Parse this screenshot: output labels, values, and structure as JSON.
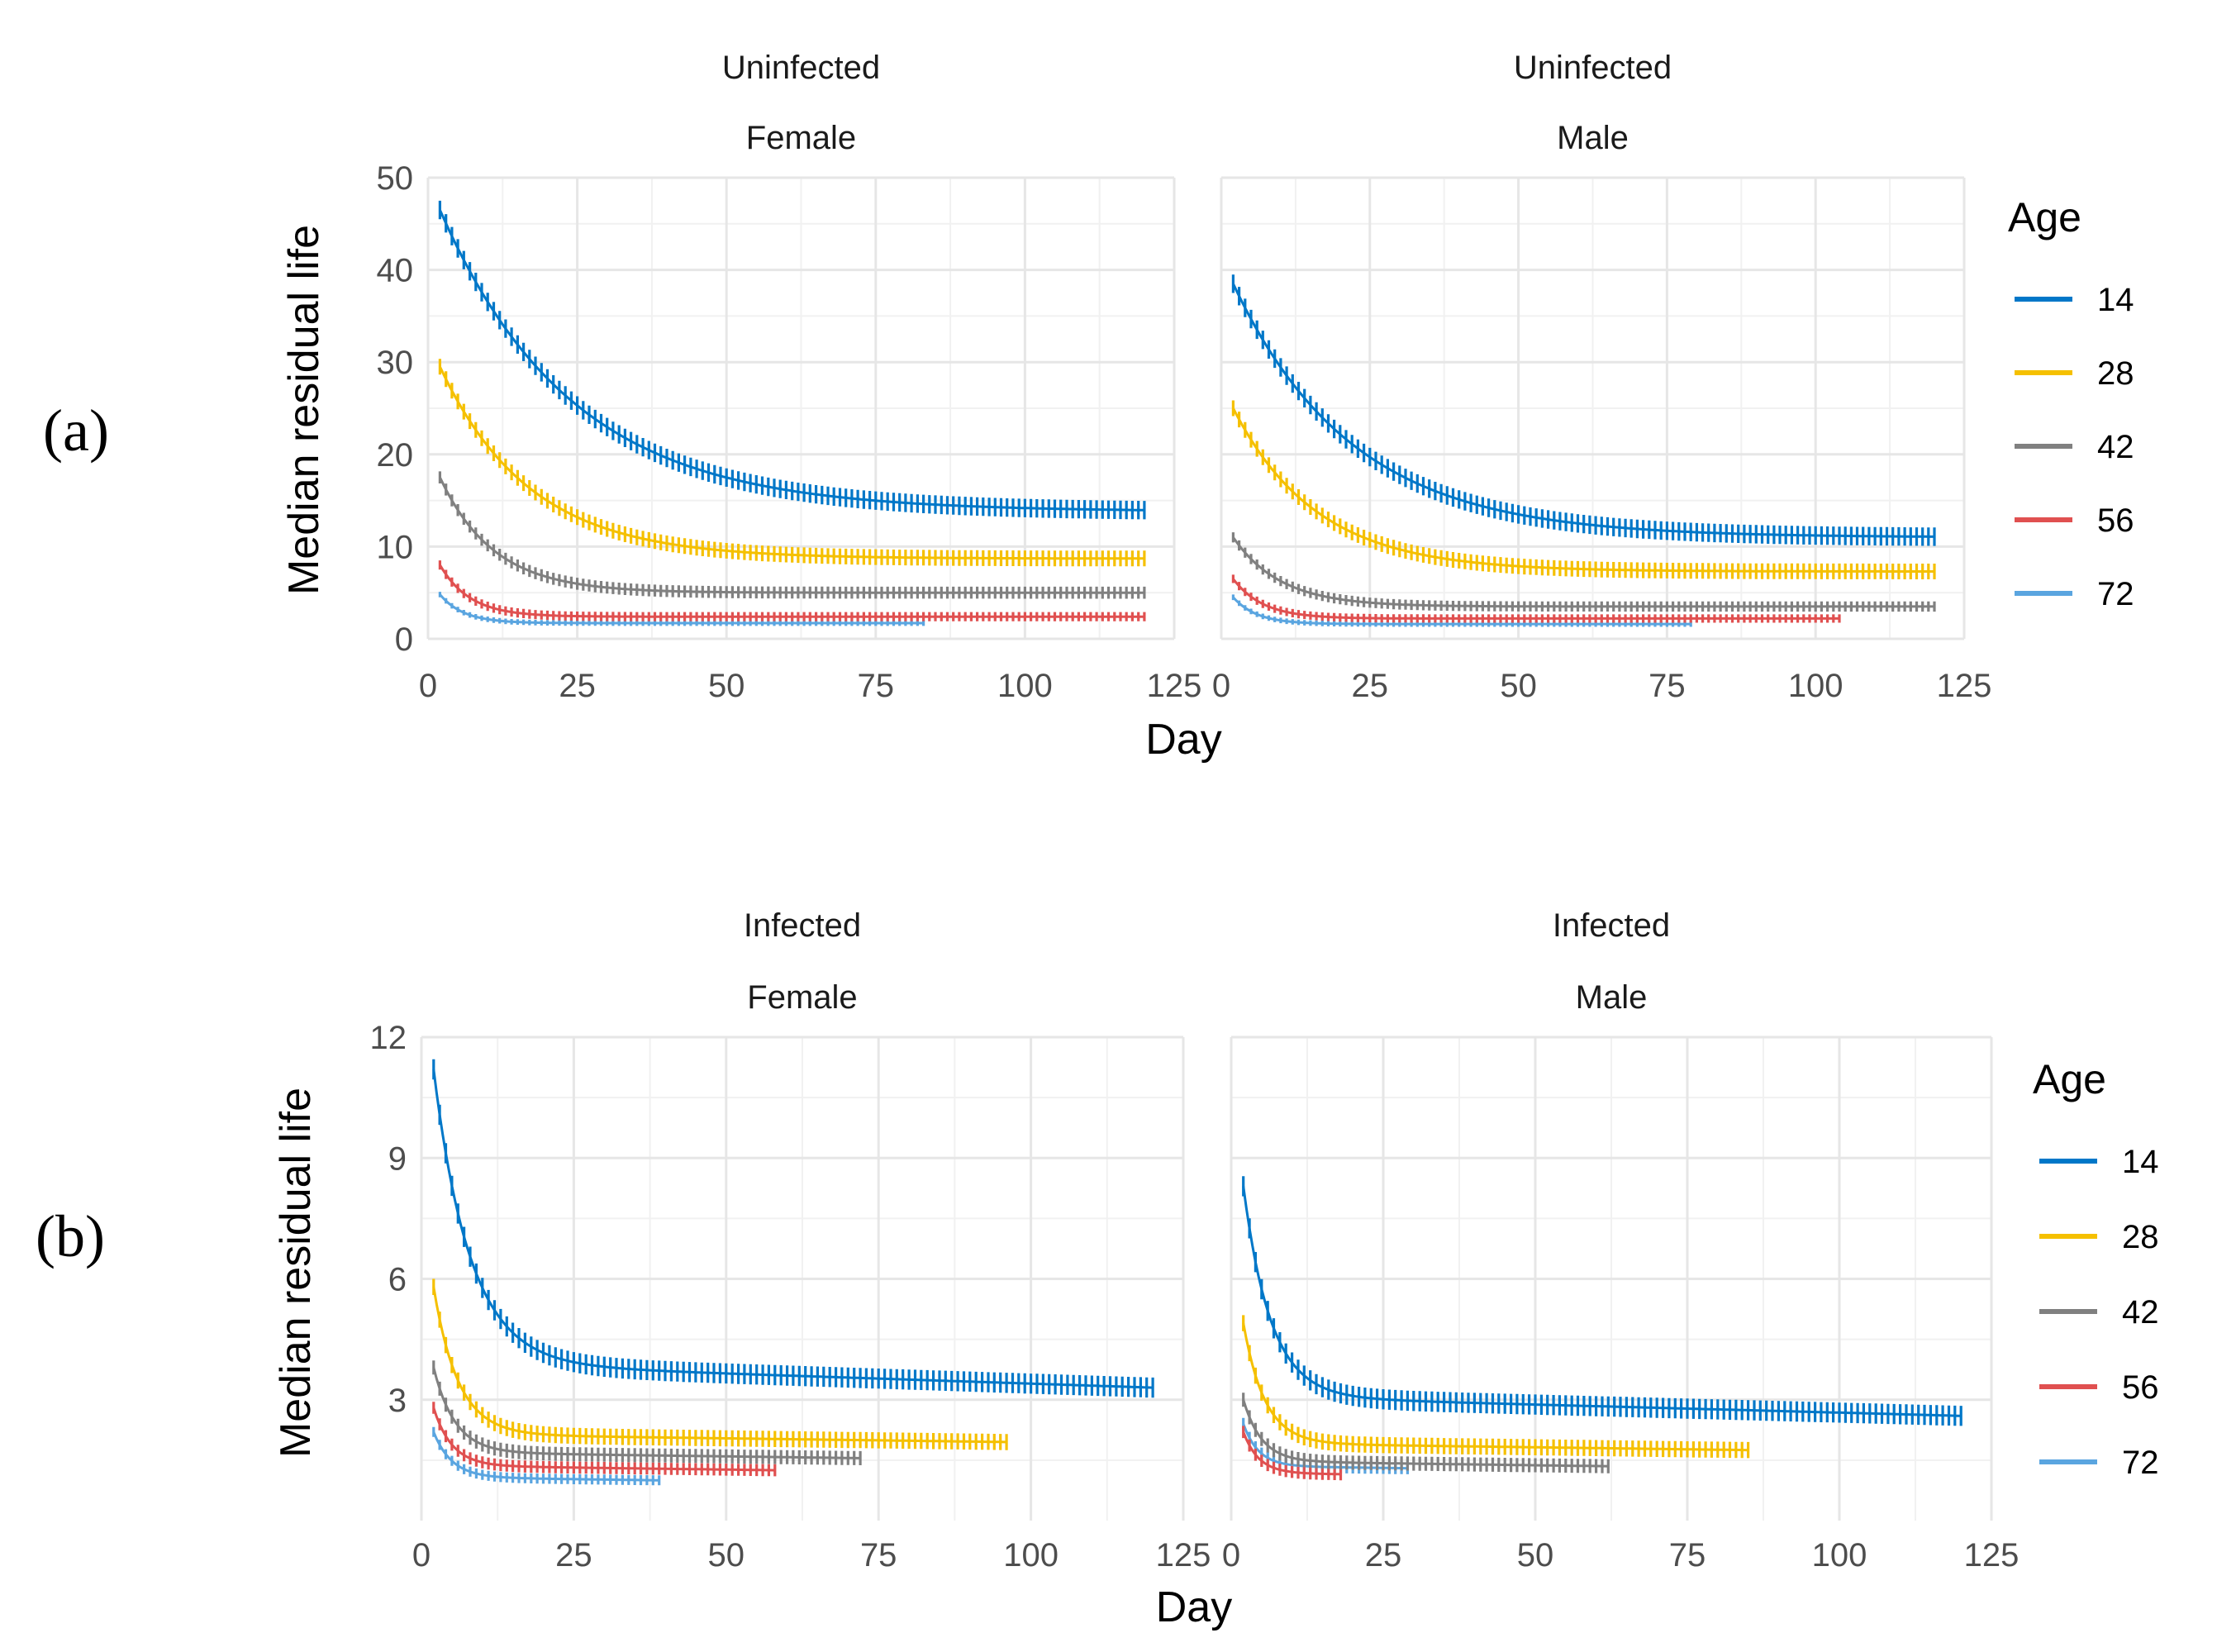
{
  "chart_data": [
    {
      "type": "line",
      "figure_label": "(a)",
      "xlabel": "Day",
      "ylabel": "Median residual life",
      "ylim": [
        0,
        50
      ],
      "y_ticks": [
        0,
        10,
        20,
        30,
        40,
        50
      ],
      "xlim": [
        0,
        125
      ],
      "x_ticks": [
        0,
        25,
        50,
        75,
        100,
        125
      ],
      "legend_title": "Age",
      "legend_position": "right",
      "facets": [
        {
          "strip_top": "Uninfected",
          "strip_bottom": "Female",
          "series": [
            {
              "name": "14",
              "color": "#0077c8",
              "x_start": 2,
              "x_end": 120,
              "y_start": 46.5,
              "y_end": 13.8,
              "decay": 22,
              "band": 2.0
            },
            {
              "name": "28",
              "color": "#f5c000",
              "x_start": 2,
              "x_end": 120,
              "y_start": 29.5,
              "y_end": 8.7,
              "decay": 15,
              "band": 1.7
            },
            {
              "name": "42",
              "color": "#808080",
              "x_start": 2,
              "x_end": 120,
              "y_start": 17.5,
              "y_end": 5.0,
              "decay": 9,
              "band": 1.3
            },
            {
              "name": "56",
              "color": "#e05050",
              "x_start": 2,
              "x_end": 120,
              "y_start": 8.0,
              "y_end": 2.4,
              "decay": 5,
              "band": 1.0
            },
            {
              "name": "72",
              "color": "#5aa5e0",
              "x_start": 2,
              "x_end": 83,
              "y_start": 4.8,
              "y_end": 1.7,
              "decay": 4,
              "band": 0.6
            }
          ]
        },
        {
          "strip_top": "Uninfected",
          "strip_bottom": "Male",
          "series": [
            {
              "name": "14",
              "color": "#0077c8",
              "x_start": 2,
              "x_end": 120,
              "y_start": 38.5,
              "y_end": 11.0,
              "decay": 20,
              "band": 2.0
            },
            {
              "name": "28",
              "color": "#f5c000",
              "x_start": 2,
              "x_end": 120,
              "y_start": 25.0,
              "y_end": 7.3,
              "decay": 14,
              "band": 1.7
            },
            {
              "name": "42",
              "color": "#808080",
              "x_start": 2,
              "x_end": 120,
              "y_start": 11.0,
              "y_end": 3.5,
              "decay": 8,
              "band": 1.1
            },
            {
              "name": "56",
              "color": "#e05050",
              "x_start": 2,
              "x_end": 104,
              "y_start": 6.5,
              "y_end": 2.2,
              "decay": 5,
              "band": 0.9
            },
            {
              "name": "72",
              "color": "#5aa5e0",
              "x_start": 2,
              "x_end": 79,
              "y_start": 4.5,
              "y_end": 1.6,
              "decay": 4,
              "band": 0.6
            }
          ]
        }
      ]
    },
    {
      "type": "line",
      "figure_label": "(b)",
      "xlabel": "Day",
      "ylabel": "Median residual life",
      "ylim": [
        0,
        12
      ],
      "y_ticks": [
        3,
        6,
        9,
        12
      ],
      "xlim": [
        0,
        125
      ],
      "x_ticks": [
        0,
        25,
        50,
        75,
        100,
        125
      ],
      "legend_title": "Age",
      "legend_position": "right",
      "facets": [
        {
          "strip_top": "Infected",
          "strip_bottom": "Female",
          "series": [
            {
              "name": "14",
              "color": "#0077c8",
              "x_start": 2,
              "x_end": 120,
              "y_start": 11.2,
              "y_end": 3.3,
              "decay": 6,
              "band": 0.5,
              "tail_slope": 0.005
            },
            {
              "name": "28",
              "color": "#f5c000",
              "x_start": 2,
              "x_end": 96,
              "y_start": 5.8,
              "y_end": 1.95,
              "decay": 4,
              "band": 0.4,
              "tail_slope": 0.002
            },
            {
              "name": "42",
              "color": "#808080",
              "x_start": 2,
              "x_end": 72,
              "y_start": 3.8,
              "y_end": 1.55,
              "decay": 3.5,
              "band": 0.35,
              "tail_slope": 0.002
            },
            {
              "name": "56",
              "color": "#e05050",
              "x_start": 2,
              "x_end": 58,
              "y_start": 2.8,
              "y_end": 1.25,
              "decay": 3,
              "band": 0.3,
              "tail_slope": 0.002
            },
            {
              "name": "72",
              "color": "#5aa5e0",
              "x_start": 2,
              "x_end": 39,
              "y_start": 2.2,
              "y_end": 1.0,
              "decay": 3,
              "band": 0.25,
              "tail_slope": 0.002
            }
          ]
        },
        {
          "strip_top": "Infected",
          "strip_bottom": "Male",
          "series": [
            {
              "name": "14",
              "color": "#0077c8",
              "x_start": 2,
              "x_end": 120,
              "y_start": 8.3,
              "y_end": 2.6,
              "decay": 4.5,
              "band": 0.5,
              "tail_slope": 0.004
            },
            {
              "name": "28",
              "color": "#f5c000",
              "x_start": 2,
              "x_end": 85,
              "y_start": 4.9,
              "y_end": 1.75,
              "decay": 3.5,
              "band": 0.4,
              "tail_slope": 0.002
            },
            {
              "name": "42",
              "color": "#808080",
              "x_start": 2,
              "x_end": 62,
              "y_start": 3.0,
              "y_end": 1.35,
              "decay": 3,
              "band": 0.35,
              "tail_slope": 0.002
            },
            {
              "name": "56",
              "color": "#e05050",
              "x_start": 2,
              "x_end": 18,
              "y_start": 2.2,
              "y_end": 1.15,
              "decay": 2.5,
              "band": 0.3,
              "tail_slope": 0.002
            },
            {
              "name": "72",
              "color": "#5aa5e0",
              "x_start": 2,
              "x_end": 29,
              "y_start": 2.4,
              "y_end": 1.3,
              "decay": 2.5,
              "band": 0.3,
              "tail_slope": 0.002
            }
          ]
        }
      ]
    }
  ]
}
